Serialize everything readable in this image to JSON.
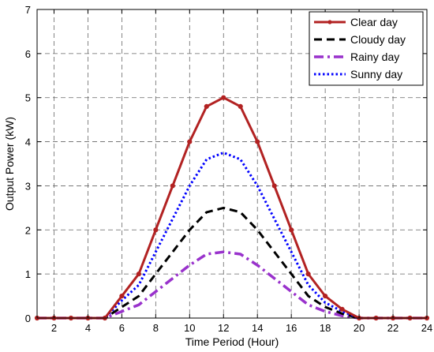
{
  "chart_data": {
    "type": "line",
    "title": "",
    "xlabel": "Time Period (Hour)",
    "ylabel": "Output Power (kW)",
    "xlim": [
      1,
      24
    ],
    "ylim": [
      0,
      7
    ],
    "xticks": [
      2,
      4,
      6,
      8,
      10,
      12,
      14,
      16,
      18,
      20,
      22,
      24
    ],
    "yticks": [
      0,
      1,
      2,
      3,
      4,
      5,
      6,
      7
    ],
    "grid": true,
    "legend_position": "top-right",
    "x": [
      1,
      2,
      3,
      4,
      5,
      6,
      7,
      8,
      9,
      10,
      11,
      12,
      13,
      14,
      15,
      16,
      17,
      18,
      19,
      20,
      21,
      22,
      23,
      24
    ],
    "series": [
      {
        "name": "Clear day",
        "color": "#b22222",
        "style": "solid-marker",
        "values": [
          0,
          0,
          0,
          0,
          0,
          0.5,
          1.0,
          2.0,
          3.0,
          4.0,
          4.8,
          5.0,
          4.8,
          4.0,
          3.0,
          2.0,
          1.0,
          0.5,
          0.2,
          0,
          0,
          0,
          0,
          0
        ]
      },
      {
        "name": "Cloudy day",
        "color": "#000000",
        "style": "dashed",
        "values": [
          0,
          0,
          0,
          0,
          0,
          0.25,
          0.5,
          1.0,
          1.5,
          2.0,
          2.4,
          2.5,
          2.4,
          2.0,
          1.5,
          1.0,
          0.5,
          0.25,
          0.1,
          0,
          0,
          0,
          0,
          0
        ]
      },
      {
        "name": "Rainy day",
        "color": "#9932cc",
        "style": "dashdot",
        "values": [
          0,
          0,
          0,
          0,
          0,
          0.15,
          0.3,
          0.6,
          0.9,
          1.2,
          1.45,
          1.5,
          1.45,
          1.2,
          0.9,
          0.6,
          0.3,
          0.15,
          0.05,
          0,
          0,
          0,
          0,
          0
        ]
      },
      {
        "name": "Sunny day",
        "color": "#0000ff",
        "style": "dotted",
        "values": [
          0,
          0,
          0,
          0,
          0,
          0.4,
          0.75,
          1.5,
          2.25,
          3.0,
          3.6,
          3.75,
          3.6,
          3.0,
          2.25,
          1.5,
          0.75,
          0.35,
          0.15,
          0,
          0,
          0,
          0,
          0
        ]
      }
    ]
  }
}
